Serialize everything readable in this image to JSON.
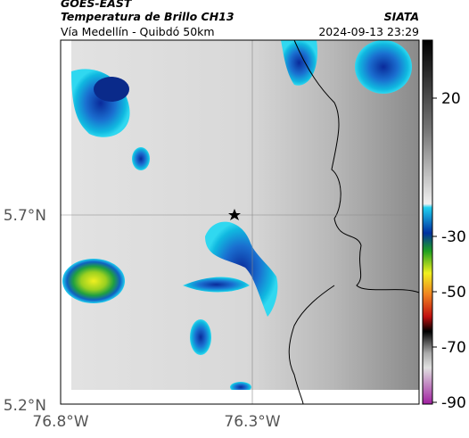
{
  "header": {
    "source": "GOES-EAST",
    "title": "Temperatura de Brillo CH13",
    "org": "SIATA",
    "route": "Vía Medellín - Quibdó 50km",
    "timestamp": "2024-09-13 23:29"
  },
  "map": {
    "lat_labels": [
      "5.7°N",
      "5.2°N"
    ],
    "lon_labels": [
      "76.8°W",
      "76.3°W"
    ]
  },
  "colorbar": {
    "ticks": [
      20,
      -30,
      -50,
      -70,
      -90
    ]
  }
}
